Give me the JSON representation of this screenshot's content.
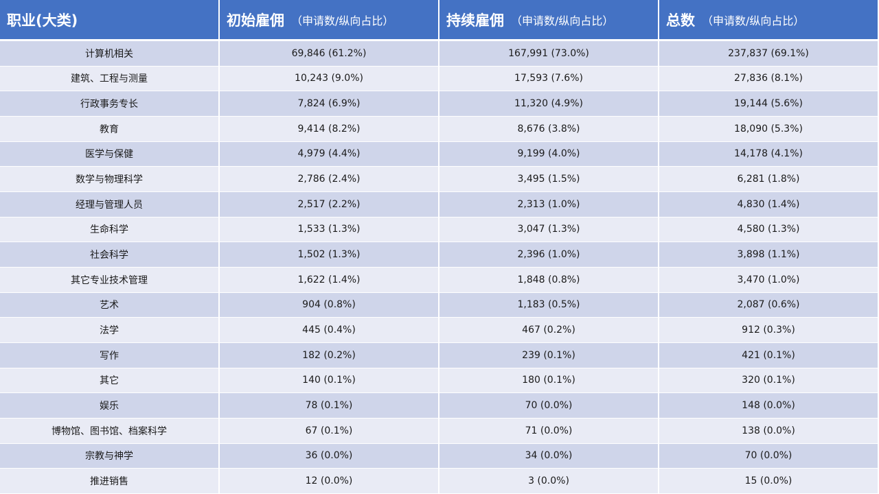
{
  "header": {
    "col0": {
      "main": "职业(大类)",
      "sub": ""
    },
    "col1": {
      "main": "初始雇佣",
      "sub": "（申请数/纵向占比）"
    },
    "col2": {
      "main": "持续雇佣",
      "sub": "（申请数/纵向占比）"
    },
    "col3": {
      "main": "总数",
      "sub": "（申请数/纵向占比）"
    }
  },
  "rows": [
    {
      "occupation": "计算机相关",
      "initial": "69,846 (61.2%)",
      "continuing": "167,991 (73.0%)",
      "total": "237,837 (69.1%)"
    },
    {
      "occupation": "建筑、工程与测量",
      "initial": "10,243 (9.0%)",
      "continuing": "17,593 (7.6%)",
      "total": "27,836 (8.1%)"
    },
    {
      "occupation": "行政事务专长",
      "initial": "7,824 (6.9%)",
      "continuing": "11,320 (4.9%)",
      "total": "19,144 (5.6%)"
    },
    {
      "occupation": "教育",
      "initial": "9,414 (8.2%)",
      "continuing": "8,676 (3.8%)",
      "total": "18,090 (5.3%)"
    },
    {
      "occupation": "医学与保健",
      "initial": "4,979 (4.4%)",
      "continuing": "9,199 (4.0%)",
      "total": "14,178 (4.1%)"
    },
    {
      "occupation": "数学与物理科学",
      "initial": "2,786 (2.4%)",
      "continuing": "3,495 (1.5%)",
      "total": "6,281 (1.8%)"
    },
    {
      "occupation": "经理与管理人员",
      "initial": "2,517 (2.2%)",
      "continuing": "2,313 (1.0%)",
      "total": "4,830 (1.4%)"
    },
    {
      "occupation": "生命科学",
      "initial": "1,533 (1.3%)",
      "continuing": "3,047 (1.3%)",
      "total": "4,580 (1.3%)"
    },
    {
      "occupation": "社会科学",
      "initial": "1,502 (1.3%)",
      "continuing": "2,396 (1.0%)",
      "total": "3,898 (1.1%)"
    },
    {
      "occupation": "其它专业技术管理",
      "initial": "1,622 (1.4%)",
      "continuing": "1,848 (0.8%)",
      "total": "3,470 (1.0%)"
    },
    {
      "occupation": "艺术",
      "initial": "904 (0.8%)",
      "continuing": "1,183 (0.5%)",
      "total": "2,087 (0.6%)"
    },
    {
      "occupation": "法学",
      "initial": "445 (0.4%)",
      "continuing": "467 (0.2%)",
      "total": "912 (0.3%)"
    },
    {
      "occupation": "写作",
      "initial": "182 (0.2%)",
      "continuing": "239 (0.1%)",
      "total": "421 (0.1%)"
    },
    {
      "occupation": "其它",
      "initial": "140 (0.1%)",
      "continuing": "180 (0.1%)",
      "total": "320 (0.1%)"
    },
    {
      "occupation": "娱乐",
      "initial": "78 (0.1%)",
      "continuing": "70 (0.0%)",
      "total": "148 (0.0%)"
    },
    {
      "occupation": "博物馆、图书馆、档案科学",
      "initial": "67 (0.1%)",
      "continuing": "71 (0.0%)",
      "total": "138 (0.0%)"
    },
    {
      "occupation": "宗教与神学",
      "initial": "36 (0.0%)",
      "continuing": "34 (0.0%)",
      "total": "70 (0.0%)"
    },
    {
      "occupation": "推进销售",
      "initial": "12 (0.0%)",
      "continuing": "3 (0.0%)",
      "total": "15 (0.0%)"
    }
  ],
  "colors": {
    "header_bg": "#4472c4",
    "row_odd_bg": "#cfd5ea",
    "row_even_bg": "#e9ebf5",
    "header_text": "#ffffff"
  }
}
